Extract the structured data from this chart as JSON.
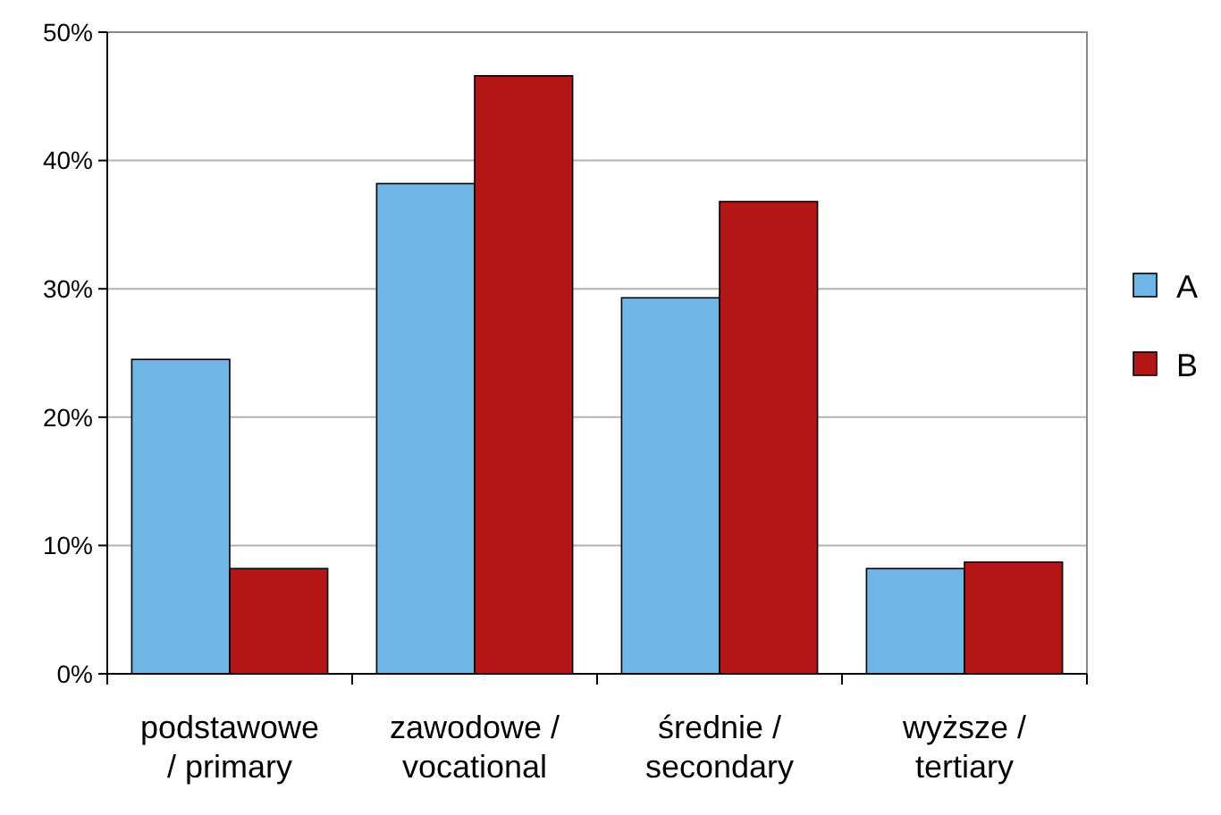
{
  "chart_data": {
    "type": "bar",
    "categories": [
      "podstawowe / primary",
      "zawodowe / vocational",
      "średnie / secondary",
      "wyższe / tertiary"
    ],
    "series": [
      {
        "name": "A",
        "color": "#6db6e6",
        "values": [
          24.5,
          38.2,
          29.3,
          8.2
        ]
      },
      {
        "name": "B",
        "color": "#b41515",
        "values": [
          8.2,
          46.6,
          36.8,
          8.7
        ]
      }
    ],
    "ylim": [
      0,
      50
    ],
    "yticks": [
      {
        "value": 0,
        "label": "0%"
      },
      {
        "value": 10,
        "label": "10%"
      },
      {
        "value": 20,
        "label": "20%"
      },
      {
        "value": 30,
        "label": "30%"
      },
      {
        "value": 40,
        "label": "40%"
      },
      {
        "value": 50,
        "label": "50%"
      }
    ],
    "grid": "y",
    "legend": "right"
  }
}
